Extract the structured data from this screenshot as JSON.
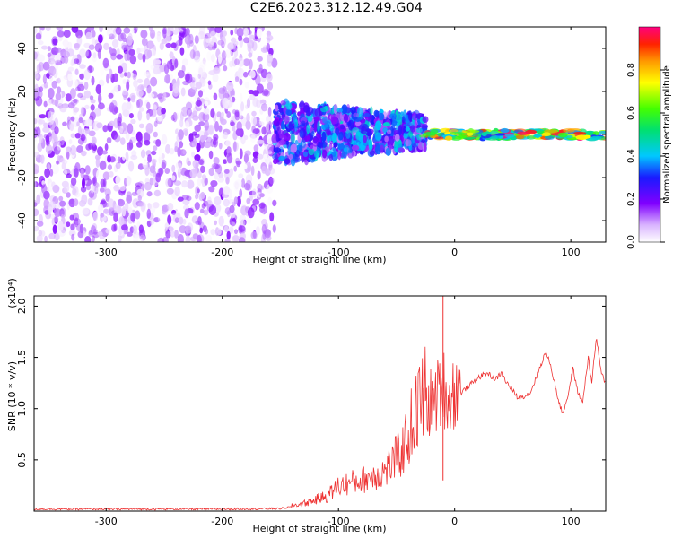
{
  "title": "C2E6.2023.312.12.49.G04",
  "chart_data": [
    {
      "type": "heatmap",
      "xlabel": "Height of straight line (km)",
      "ylabel": "Frequency (Hz)",
      "xlim": [
        -362,
        130
      ],
      "ylim": [
        -50,
        50
      ],
      "x_ticks": [
        "-300",
        "-200",
        "-100",
        "0",
        "100"
      ],
      "y_ticks": [
        "40",
        "20",
        "0",
        "-20",
        "-40"
      ],
      "colorbar": {
        "label": "Normalized spectral amplitude",
        "ticks": [
          "0.0",
          "0.2",
          "0.4",
          "0.6",
          "0.8"
        ],
        "range": [
          0,
          1
        ]
      },
      "regions": [
        {
          "x_range": [
            -362,
            -155
          ],
          "freq_range": [
            -50,
            50
          ],
          "amplitude": [
            0.0,
            0.18
          ]
        },
        {
          "x_range": [
            -155,
            -25
          ],
          "freq_range": [
            -18,
            20
          ],
          "amplitude": [
            0.1,
            0.45
          ]
        },
        {
          "x_range": [
            -25,
            130
          ],
          "freq_range": [
            -2,
            2
          ],
          "amplitude": [
            0.3,
            1.0
          ]
        }
      ]
    },
    {
      "type": "line",
      "xlabel": "Height of straight line (km)",
      "ylabel": "SNR (10 * v/v)",
      "y_scale_label": "(x10⁴)",
      "xlim": [
        -362,
        130
      ],
      "ylim": [
        0,
        2.1
      ],
      "x_ticks": [
        "-300",
        "-200",
        "-100",
        "0",
        "100"
      ],
      "y_ticks": [
        "0.5",
        "1.0",
        "1.5",
        "2.0"
      ],
      "color": "#ee3333",
      "points": [
        [
          -362,
          0.02
        ],
        [
          -300,
          0.02
        ],
        [
          -200,
          0.02
        ],
        [
          -150,
          0.025
        ],
        [
          -130,
          0.06
        ],
        [
          -110,
          0.12
        ],
        [
          -100,
          0.2
        ],
        [
          -80,
          0.25
        ],
        [
          -60,
          0.32
        ],
        [
          -45,
          0.48
        ],
        [
          -35,
          0.75
        ],
        [
          -25,
          0.95
        ],
        [
          -15,
          1.05
        ],
        [
          -10,
          1.15
        ],
        [
          -5,
          1.0
        ],
        [
          0,
          1.1
        ],
        [
          10,
          1.2
        ],
        [
          20,
          1.3
        ],
        [
          28,
          1.35
        ],
        [
          35,
          1.28
        ],
        [
          40,
          1.35
        ],
        [
          45,
          1.25
        ],
        [
          55,
          1.1
        ],
        [
          65,
          1.15
        ],
        [
          70,
          1.3
        ],
        [
          75,
          1.45
        ],
        [
          78,
          1.55
        ],
        [
          82,
          1.45
        ],
        [
          90,
          1.05
        ],
        [
          93,
          0.95
        ],
        [
          98,
          1.15
        ],
        [
          102,
          1.4
        ],
        [
          105,
          1.2
        ],
        [
          110,
          1.05
        ],
        [
          115,
          1.5
        ],
        [
          118,
          1.25
        ],
        [
          122,
          1.7
        ],
        [
          126,
          1.35
        ],
        [
          130,
          1.25
        ]
      ],
      "spike": {
        "x": -10,
        "y": 2.1
      }
    }
  ]
}
